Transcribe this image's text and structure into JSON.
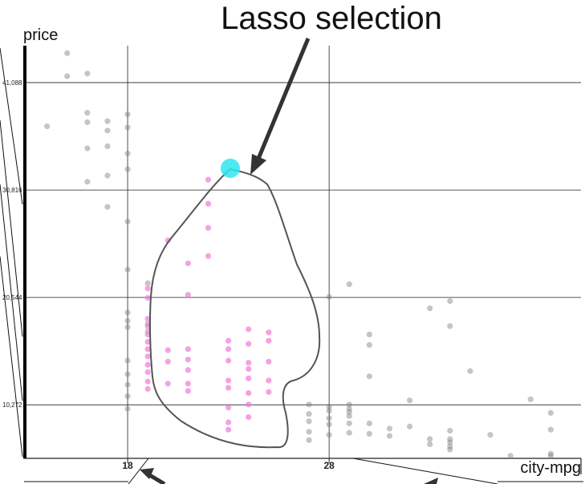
{
  "annotation": {
    "title": "Lasso selection"
  },
  "chart_data": {
    "type": "scatter",
    "title": "",
    "xlabel": "city-mpg",
    "ylabel": "price",
    "xlim": [
      12.9,
      40.5
    ],
    "ylim": [
      5154,
      44617
    ],
    "yticks": [
      "10,272",
      "20,544",
      "30,816",
      "41,088"
    ],
    "ytick_values": [
      10272,
      20544,
      30816,
      41088
    ],
    "xticks": [
      "18",
      "28"
    ],
    "xtick_values": [
      18,
      28
    ],
    "grid": true,
    "colors": {
      "unselected": "#7f7f7f",
      "selected": "#f07ad8",
      "lasso_start": "#2ee6f0",
      "lasso": "#555555"
    },
    "series": [
      {
        "selected": false,
        "points": [
          [
            14,
            36900
          ],
          [
            15,
            43900
          ],
          [
            15,
            41700
          ],
          [
            16,
            41950
          ],
          [
            16,
            38200
          ],
          [
            16,
            37300
          ],
          [
            16,
            34800
          ],
          [
            17,
            37400
          ],
          [
            17,
            36500
          ],
          [
            17,
            35000
          ],
          [
            17,
            32200
          ],
          [
            17,
            29200
          ],
          [
            16,
            31600
          ],
          [
            18,
            38050
          ],
          [
            18,
            36800
          ],
          [
            18,
            34300
          ],
          [
            18,
            32800
          ],
          [
            18,
            23200
          ],
          [
            18,
            19100
          ],
          [
            18,
            18300
          ],
          [
            18,
            17700
          ],
          [
            18,
            14500
          ],
          [
            18,
            13200
          ],
          [
            18,
            12200
          ],
          [
            18,
            11100
          ],
          [
            18,
            9900
          ],
          [
            19,
            21900
          ],
          [
            19,
            18000
          ],
          [
            19,
            17300
          ],
          [
            27,
            10300
          ],
          [
            27,
            9400
          ],
          [
            27,
            8700
          ],
          [
            27,
            7700
          ],
          [
            27,
            6900
          ],
          [
            28,
            10100
          ],
          [
            28,
            9700
          ],
          [
            28,
            9000
          ],
          [
            28,
            8400
          ],
          [
            28,
            7400
          ],
          [
            29,
            10300
          ],
          [
            29,
            9900
          ],
          [
            29,
            9600
          ],
          [
            29,
            9200
          ],
          [
            29,
            8500
          ],
          [
            29,
            7600
          ],
          [
            30,
            17000
          ],
          [
            30,
            16000
          ],
          [
            30,
            13000
          ],
          [
            30,
            8500
          ],
          [
            30,
            7500
          ],
          [
            31,
            8000
          ],
          [
            31,
            7300
          ],
          [
            32,
            10700
          ],
          [
            32,
            8200
          ],
          [
            33,
            7000
          ],
          [
            33,
            6500
          ],
          [
            34,
            17800
          ],
          [
            34,
            7800
          ],
          [
            34,
            7000
          ],
          [
            34,
            6700
          ],
          [
            34,
            6300
          ],
          [
            34,
            6000
          ],
          [
            35,
            13500
          ],
          [
            36,
            7400
          ],
          [
            37,
            5400
          ],
          [
            38,
            10800
          ],
          [
            39,
            9500
          ],
          [
            39,
            7900
          ],
          [
            39,
            5600
          ],
          [
            39,
            5400
          ],
          [
            28,
            20600
          ],
          [
            34,
            20200
          ],
          [
            33,
            19500
          ],
          [
            29,
            21800
          ],
          [
            18,
            27800
          ]
        ]
      },
      {
        "selected": true,
        "points": [
          [
            22,
            31800
          ],
          [
            22,
            29500
          ],
          [
            22,
            27200
          ],
          [
            22,
            24500
          ],
          [
            20,
            26000
          ],
          [
            21,
            23800
          ],
          [
            21,
            20800
          ],
          [
            19,
            21400
          ],
          [
            19,
            20500
          ],
          [
            19,
            18500
          ],
          [
            19,
            17800
          ],
          [
            19,
            17000
          ],
          [
            19,
            16300
          ],
          [
            19,
            15600
          ],
          [
            19,
            14900
          ],
          [
            19,
            14100
          ],
          [
            19,
            13400
          ],
          [
            19,
            12500
          ],
          [
            19,
            11800
          ],
          [
            20,
            12300
          ],
          [
            20,
            15500
          ],
          [
            20,
            14400
          ],
          [
            21,
            15600
          ],
          [
            21,
            14600
          ],
          [
            21,
            13600
          ],
          [
            21,
            12300
          ],
          [
            21,
            11600
          ],
          [
            23,
            16400
          ],
          [
            23,
            15600
          ],
          [
            23,
            14500
          ],
          [
            23,
            12600
          ],
          [
            23,
            11900
          ],
          [
            23,
            10000
          ],
          [
            23,
            8600
          ],
          [
            23,
            7900
          ],
          [
            24,
            16100
          ],
          [
            24,
            14300
          ],
          [
            24,
            12800
          ],
          [
            24,
            11400
          ],
          [
            24,
            10300
          ],
          [
            24,
            9100
          ],
          [
            25,
            17200
          ],
          [
            25,
            16400
          ],
          [
            25,
            14400
          ],
          [
            25,
            12600
          ],
          [
            25,
            11500
          ],
          [
            24,
            17500
          ],
          [
            24,
            13700
          ]
        ]
      }
    ],
    "lasso_start": [
      22,
      33600
    ]
  }
}
